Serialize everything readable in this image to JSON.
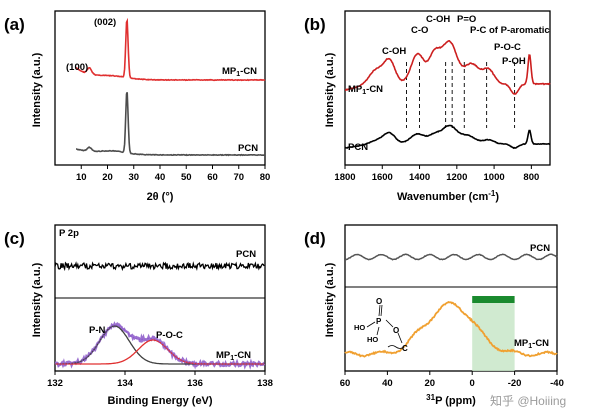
{
  "chart_data": [
    {
      "panel": "(a)",
      "type": "line",
      "xlabel": "2θ (°)",
      "ylabel": "Intensity (a.u.)",
      "xlim": [
        0,
        80
      ],
      "x_ticks": [
        "10",
        "20",
        "30",
        "40",
        "50",
        "60",
        "70",
        "80"
      ],
      "series": [
        {
          "name": "MP1-CN",
          "color": "#e03030",
          "peaks_2theta": [
            13.1,
            27.4
          ]
        },
        {
          "name": "PCN",
          "color": "#4d4d4d",
          "peaks_2theta": [
            13.1,
            27.4
          ]
        }
      ],
      "annotations": [
        "(100)",
        "(002)"
      ],
      "legend_labels": [
        "MP1-CN",
        "PCN"
      ]
    },
    {
      "panel": "(b)",
      "type": "line",
      "xlabel": "Wavenumber (cm-1)",
      "ylabel": "Intensity (a.u.)",
      "xlim": [
        1800,
        700
      ],
      "x_ticks": [
        "1800",
        "1600",
        "1400",
        "1200",
        "1000",
        "800"
      ],
      "series": [
        {
          "name": "MP1-CN",
          "color": "#cc1f1f"
        },
        {
          "name": "PCN",
          "color": "#000000"
        }
      ],
      "annotations": [
        {
          "label": "C-OH",
          "wavenumber": 1470
        },
        {
          "label": "C-O",
          "wavenumber": 1400
        },
        {
          "label": "C-OH",
          "wavenumber": 1260
        },
        {
          "label": "P=O",
          "wavenumber": 1225
        },
        {
          "label": "P-C of P-aromatic",
          "wavenumber": 1160
        },
        {
          "label": "P-O-C",
          "wavenumber": 1040
        },
        {
          "label": "P-OH",
          "wavenumber": 890
        }
      ],
      "legend_labels": [
        "MP1-CN",
        "PCN"
      ]
    },
    {
      "panel": "(c)",
      "type": "line",
      "xlabel": "Binding Energy (eV)",
      "ylabel": "Intensity (a.u.)",
      "xlim": [
        132,
        138
      ],
      "x_ticks": [
        "132",
        "134",
        "136",
        "138"
      ],
      "inset_label": "P 2p",
      "series": [
        {
          "name": "PCN",
          "color": "#000000"
        },
        {
          "name": "MP1-CN",
          "color": "#9b6fd0"
        },
        {
          "name": "P-N",
          "color": "#404040",
          "center_eV": 133.7
        },
        {
          "name": "P-O-C",
          "color": "#e03030",
          "center_eV": 134.8
        }
      ],
      "annotations": [
        "P-N",
        "P-O-C"
      ],
      "legend_labels": [
        "PCN",
        "MP1-CN"
      ]
    },
    {
      "panel": "(d)",
      "type": "line",
      "xlabel": "31P (ppm)",
      "ylabel": "Intensity (a.u.)",
      "xlim": [
        60,
        -40
      ],
      "x_ticks": [
        "60",
        "40",
        "20",
        "0",
        "-20",
        "-40"
      ],
      "series": [
        {
          "name": "PCN",
          "color": "#555555"
        },
        {
          "name": "MP1-CN",
          "color": "#f0a030",
          "peak_ppm": 10
        }
      ],
      "highlight_range_ppm": [
        0,
        -20
      ],
      "legend_labels": [
        "PCN",
        "MP1-CN"
      ]
    }
  ],
  "watermark": "知乎 @Hoiiing"
}
